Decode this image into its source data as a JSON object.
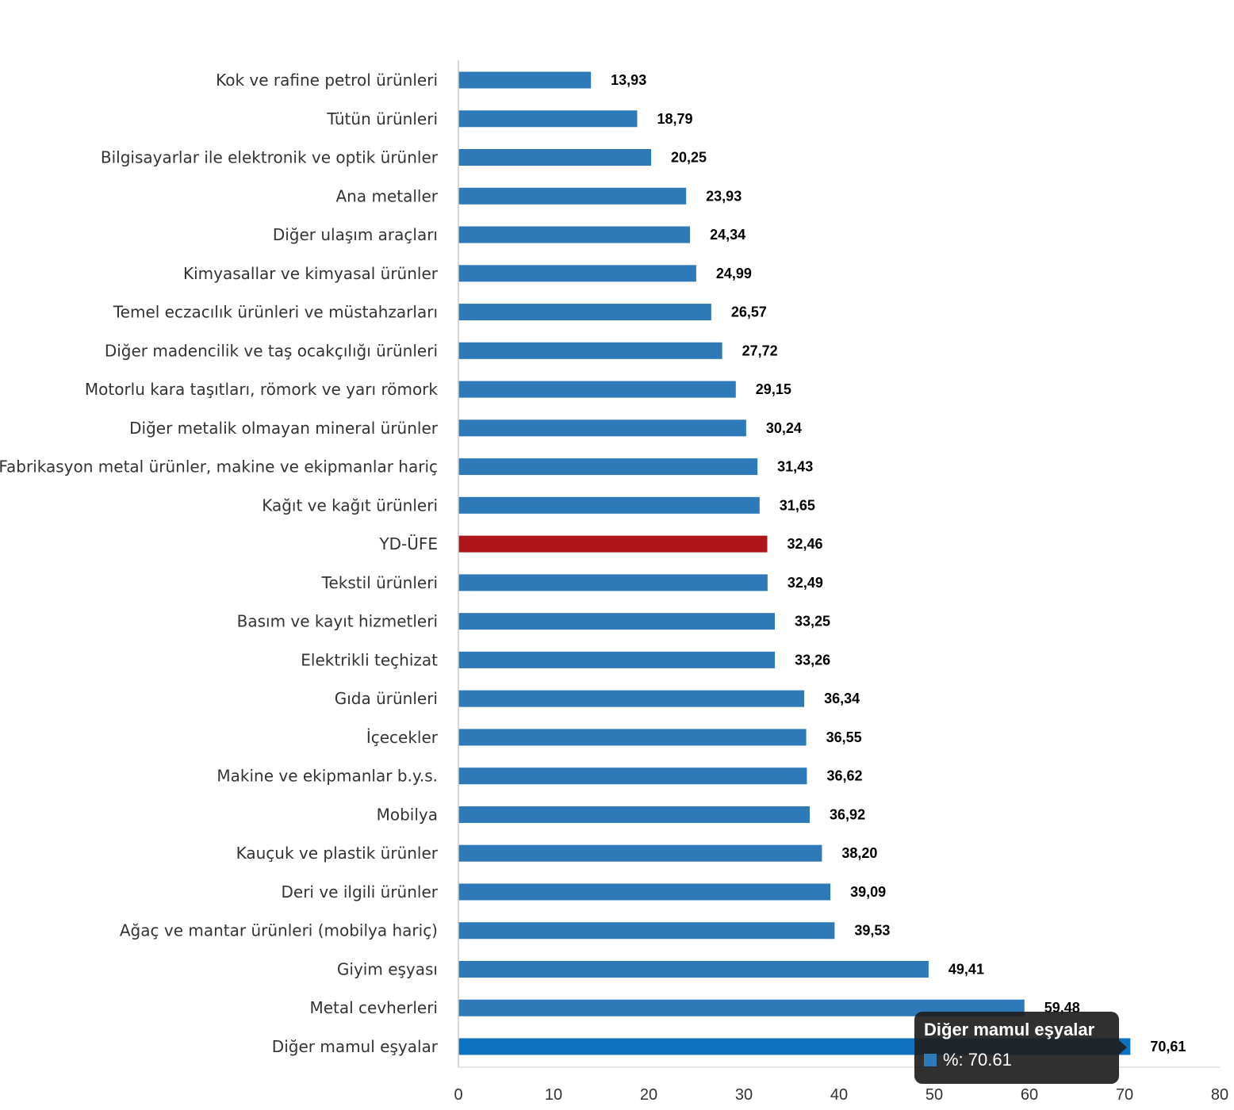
{
  "chart_data": {
    "type": "bar",
    "orientation": "horizontal",
    "categories": [
      "Kok ve rafine petrol ürünleri",
      "Tütün ürünleri",
      "Bilgisayarlar ile elektronik ve optik ürünler",
      "Ana metaller",
      "Diğer ulaşım araçları",
      "Kimyasallar ve kimyasal ürünler",
      "Temel eczacılık ürünleri ve müstahzarları",
      "Diğer madencilik ve taş ocakçılığı ürünleri",
      "Motorlu kara taşıtları, römork ve yarı römork",
      "Diğer metalik olmayan mineral ürünler",
      "Fabrikasyon metal ürünler, makine ve ekipmanlar hariç",
      "Kağıt ve kağıt ürünleri",
      "YD-ÜFE",
      "Tekstil ürünleri",
      "Basım ve kayıt hizmetleri",
      "Elektrikli teçhizat",
      "Gıda ürünleri",
      "İçecekler",
      "Makine ve ekipmanlar b.y.s.",
      "Mobilya",
      "Kauçuk ve plastik ürünler",
      "Deri ve ilgili ürünler",
      "Ağaç ve mantar ürünleri (mobilya hariç)",
      "Giyim eşyası",
      "Metal cevherleri",
      "Diğer mamul eşyalar"
    ],
    "values": [
      13.93,
      18.79,
      20.25,
      23.93,
      24.34,
      24.99,
      26.57,
      27.72,
      29.15,
      30.24,
      31.43,
      31.65,
      32.46,
      32.49,
      33.25,
      33.26,
      36.34,
      36.55,
      36.62,
      36.92,
      38.2,
      39.09,
      39.53,
      49.41,
      59.48,
      70.61
    ],
    "value_labels": [
      "13,93",
      "18,79",
      "20,25",
      "23,93",
      "24,34",
      "24,99",
      "26,57",
      "27,72",
      "29,15",
      "30,24",
      "31,43",
      "31,65",
      "32,46",
      "32,49",
      "33,25",
      "33,26",
      "36,34",
      "36,55",
      "36,62",
      "36,92",
      "38,20",
      "39,09",
      "39,53",
      "49,41",
      "59,48",
      "70,61"
    ],
    "series_name": "%",
    "xlim": [
      0,
      80
    ],
    "ticks": [
      "0",
      "10",
      "20",
      "30",
      "40",
      "50",
      "60",
      "70",
      "80"
    ],
    "tick_values": [
      0,
      10,
      20,
      30,
      40,
      50,
      60,
      70,
      80
    ],
    "highlight_category": "YD-ÜFE",
    "hovered_category": "Diğer mamul eşyalar",
    "title": "",
    "xlabel": "",
    "ylabel": ""
  },
  "colors": {
    "bar": "#2e7ab9",
    "highlight": "#ad1519",
    "hovered": "#0d72c2",
    "axis": "#cccccc"
  },
  "tooltip": {
    "title": "Diğer mamul eşyalar",
    "value_text": "%: 70.61"
  }
}
